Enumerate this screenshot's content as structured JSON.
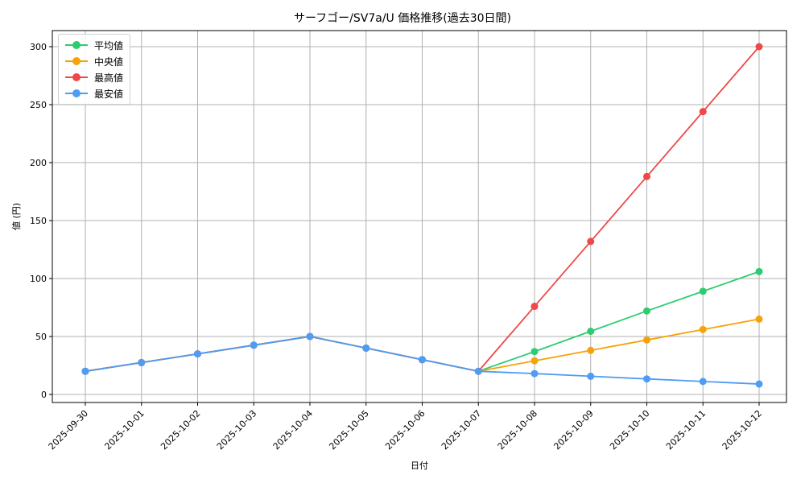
{
  "chart_data": {
    "type": "line",
    "title": "サーフゴー/SV7a/U 価格推移(過去30日間)",
    "xlabel": "日付",
    "ylabel": "値 (円)",
    "categories": [
      "2025-09-30",
      "2025-10-01",
      "2025-10-02",
      "2025-10-03",
      "2025-10-04",
      "2025-10-05",
      "2025-10-06",
      "2025-10-07",
      "2025-10-08",
      "2025-10-09",
      "2025-10-10",
      "2025-10-11",
      "2025-10-12"
    ],
    "ylim": [
      -8,
      315
    ],
    "yticks": [
      0,
      50,
      100,
      150,
      200,
      250,
      300
    ],
    "grid": true,
    "legend_position": "upper left",
    "series": [
      {
        "name": "平均値",
        "color": "#2ecc71",
        "values": [
          20,
          27.5,
          35,
          42.5,
          50,
          40,
          30,
          20,
          37,
          54.5,
          72,
          89,
          106
        ]
      },
      {
        "name": "中央値",
        "color": "#f5a30a",
        "values": [
          20,
          27.5,
          35,
          42.5,
          50,
          40,
          30,
          20,
          29,
          38,
          47,
          56,
          65
        ]
      },
      {
        "name": "最高値",
        "color": "#f04848",
        "values": [
          20,
          27.5,
          35,
          42.5,
          50,
          40,
          30,
          20,
          76,
          132,
          188,
          244,
          300
        ]
      },
      {
        "name": "最安値",
        "color": "#4f9cf5",
        "values": [
          20,
          27.5,
          35,
          42.5,
          50,
          40,
          30,
          20,
          18,
          15.7,
          13.4,
          11.2,
          9
        ]
      }
    ]
  }
}
